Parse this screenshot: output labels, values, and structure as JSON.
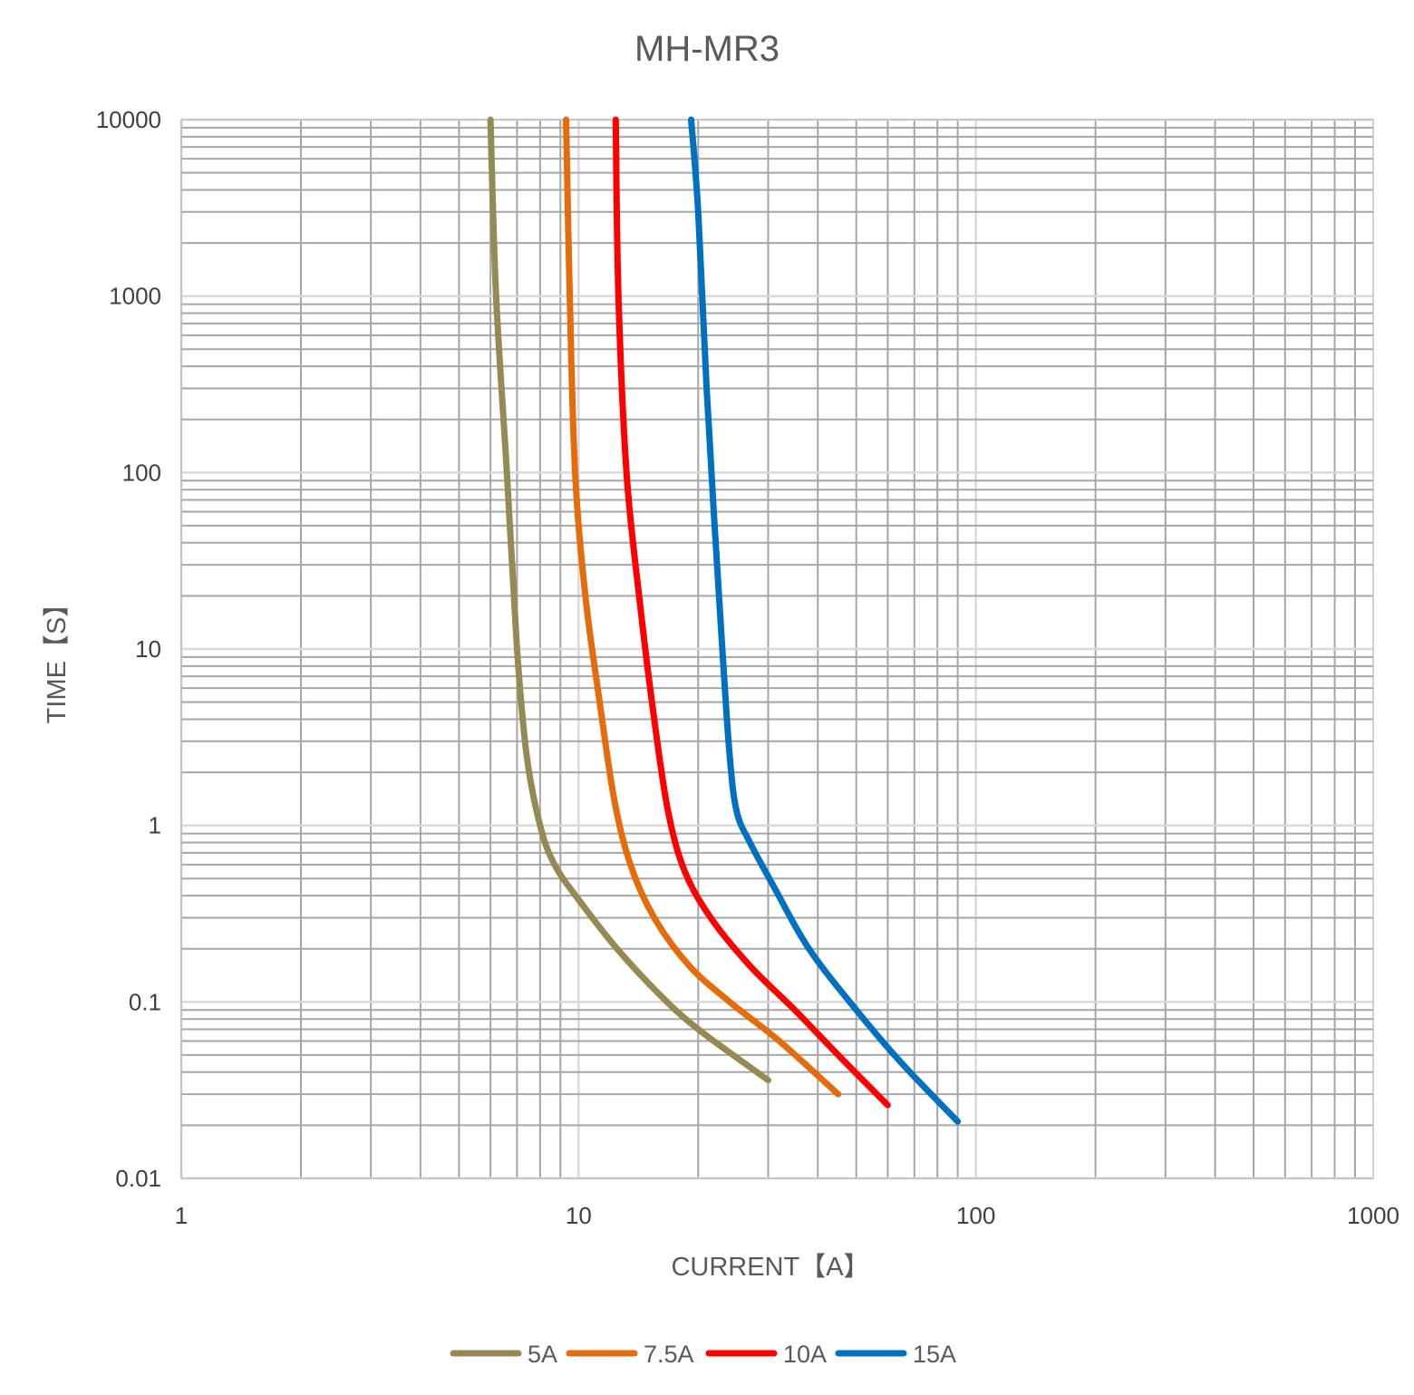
{
  "chart_data": {
    "type": "line",
    "title": "MH-MR3",
    "xlabel": "CURRENT【A】",
    "ylabel": "TIME【S】",
    "xscale": "log",
    "yscale": "log",
    "xlim": [
      1,
      1000
    ],
    "ylim": [
      0.01,
      10000
    ],
    "x_ticks": [
      1,
      10,
      100,
      1000
    ],
    "x_tick_labels": [
      "1",
      "10",
      "100",
      "1000"
    ],
    "y_ticks": [
      0.01,
      0.1,
      1,
      10,
      100,
      1000,
      10000
    ],
    "y_tick_labels": [
      "0.01",
      "0.1",
      "1",
      "10",
      "100",
      "1000",
      "10000"
    ],
    "grid": true,
    "legend_position": "bottom",
    "series": [
      {
        "name": "5A",
        "color": "#948A54",
        "points": [
          [
            6.0,
            10000
          ],
          [
            6.2,
            1000
          ],
          [
            6.6,
            100
          ],
          [
            7.0,
            10
          ],
          [
            7.4,
            2.5
          ],
          [
            8.0,
            1.0
          ],
          [
            8.7,
            0.6
          ],
          [
            10.0,
            0.38
          ],
          [
            12.5,
            0.2
          ],
          [
            16.0,
            0.11
          ],
          [
            20.0,
            0.07
          ],
          [
            30.0,
            0.036
          ]
        ]
      },
      {
        "name": "7.5A",
        "color": "#E46C0A",
        "points": [
          [
            9.3,
            10000
          ],
          [
            9.5,
            1000
          ],
          [
            9.8,
            100
          ],
          [
            10.4,
            20
          ],
          [
            11.3,
            5
          ],
          [
            12.3,
            1.4
          ],
          [
            13.5,
            0.6
          ],
          [
            15.5,
            0.3
          ],
          [
            19.0,
            0.16
          ],
          [
            24.0,
            0.1
          ],
          [
            32.0,
            0.06
          ],
          [
            45.0,
            0.03
          ]
        ]
      },
      {
        "name": "10A",
        "color": "#FF0000",
        "points": [
          [
            12.4,
            10000
          ],
          [
            12.6,
            1000
          ],
          [
            13.2,
            100
          ],
          [
            14.2,
            20
          ],
          [
            15.5,
            4
          ],
          [
            16.8,
            1.2
          ],
          [
            18.5,
            0.55
          ],
          [
            21.5,
            0.3
          ],
          [
            27.0,
            0.16
          ],
          [
            35.0,
            0.09
          ],
          [
            45.0,
            0.05
          ],
          [
            60.0,
            0.026
          ]
        ]
      },
      {
        "name": "15A",
        "color": "#0070C0",
        "points": [
          [
            19.2,
            10000
          ],
          [
            20.0,
            3000
          ],
          [
            21.0,
            300
          ],
          [
            22.0,
            50
          ],
          [
            23.0,
            10
          ],
          [
            24.0,
            2.5
          ],
          [
            25.0,
            1.2
          ],
          [
            27.0,
            0.8
          ],
          [
            31.0,
            0.45
          ],
          [
            38.0,
            0.2
          ],
          [
            50.0,
            0.09
          ],
          [
            65.0,
            0.045
          ],
          [
            90.0,
            0.021
          ]
        ]
      }
    ]
  }
}
